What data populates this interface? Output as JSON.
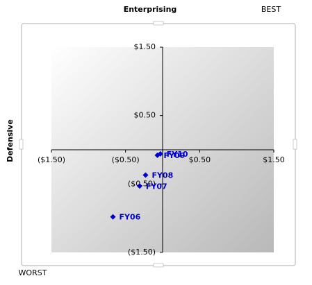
{
  "chart_data": {
    "type": "scatter",
    "x_label": "Enterprising",
    "y_label": "Defensive",
    "annotations": [
      "BEST",
      "WORST"
    ],
    "labels": [
      "FY10",
      "FY09",
      "FY08",
      "FY07",
      "FY06"
    ],
    "x": [
      -0.03,
      -0.07,
      -0.23,
      -0.31,
      -0.67
    ],
    "values": [
      -0.06,
      -0.08,
      -0.37,
      -0.53,
      -0.98
    ],
    "color": "#0000cc",
    "xlim": [
      -1.5,
      1.5
    ],
    "ylim": [
      -1.5,
      1.5
    ],
    "xticks": [
      {
        "value": -1.5,
        "label": "($1.50)"
      },
      {
        "value": -0.5,
        "label": "($0.50)"
      },
      {
        "value": 0.5,
        "label": "$0.50"
      },
      {
        "value": 1.5,
        "label": "$1.50"
      }
    ],
    "yticks": [
      {
        "value": -1.5,
        "label": "($1.50)"
      },
      {
        "value": -0.5,
        "label": "($0.50)"
      },
      {
        "value": 0.5,
        "label": "$0.50"
      },
      {
        "value": 1.5,
        "label": "$1.50"
      }
    ]
  }
}
